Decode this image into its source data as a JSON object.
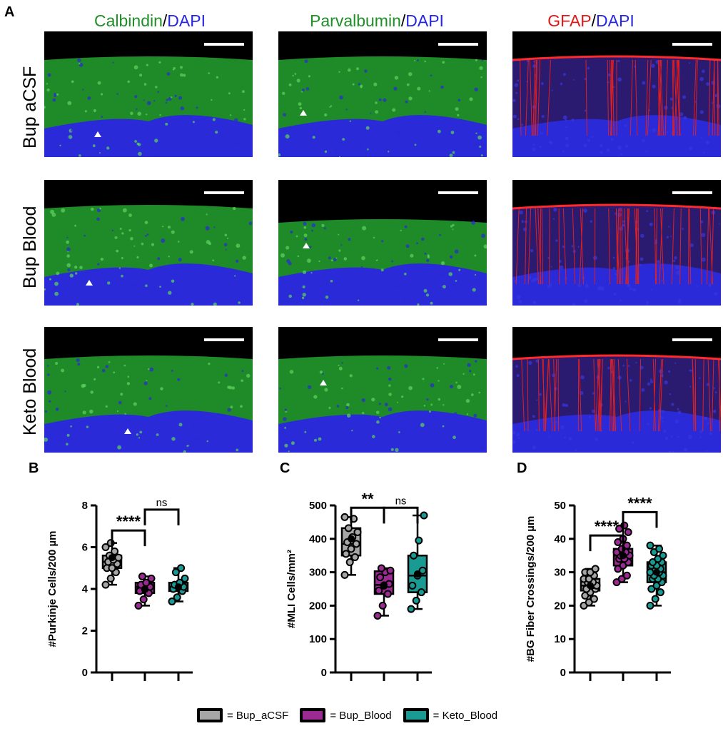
{
  "panel_letters": [
    "A",
    "B",
    "C",
    "D"
  ],
  "column_titles": [
    {
      "marker": "Calbindin",
      "sep": "/",
      "dapi": "DAPI",
      "color": "#1e8f26"
    },
    {
      "marker": "Parvalbumin",
      "sep": "/",
      "dapi": "DAPI",
      "color": "#1e8f26"
    },
    {
      "marker": "GFAP",
      "sep": "/",
      "dapi": "DAPI",
      "color": "#e01818"
    }
  ],
  "dapi_color": "#2626e0",
  "row_labels": [
    "Bup aCSF",
    "Bup Blood",
    "Keto Blood"
  ],
  "legend": [
    {
      "label": "= Bup_aCSF",
      "color": "#a6a6a6"
    },
    {
      "label": "= Bup_Blood",
      "color": "#9b2b93"
    },
    {
      "label": "= Keto_Blood",
      "color": "#199a92"
    }
  ],
  "chart_data": [
    {
      "type": "box",
      "panel": "B",
      "ylabel": "#Purkinje Cells/200 µm",
      "ylim": [
        0,
        8
      ],
      "yticks": [
        0,
        2,
        4,
        6,
        8
      ],
      "groups": [
        {
          "name": "Bup_aCSF",
          "min": 4.2,
          "q1": 5.0,
          "median": 5.3,
          "q3": 5.6,
          "max": 6.2,
          "mean": 5.5,
          "points": [
            4.2,
            4.5,
            4.8,
            5.0,
            5.0,
            5.2,
            5.3,
            5.4,
            5.5,
            5.6,
            5.8,
            6.0,
            6.2
          ]
        },
        {
          "name": "Bup_Blood",
          "min": 3.2,
          "q1": 3.8,
          "median": 4.1,
          "q3": 4.3,
          "max": 4.6,
          "mean": 4.0,
          "points": [
            3.2,
            3.5,
            3.8,
            3.9,
            4.0,
            4.1,
            4.2,
            4.3,
            4.5,
            4.6
          ]
        },
        {
          "name": "Keto_Blood",
          "min": 3.4,
          "q1": 3.9,
          "median": 4.1,
          "q3": 4.3,
          "max": 5.0,
          "mean": 4.1,
          "points": [
            3.4,
            3.6,
            3.9,
            4.0,
            4.1,
            4.1,
            4.2,
            4.3,
            4.5,
            4.8,
            5.0
          ]
        }
      ],
      "brackets": [
        {
          "from": 0,
          "to": 1,
          "label": "****",
          "y": 6.8,
          "bold": true
        },
        {
          "from": 1,
          "to": 2,
          "label": "ns",
          "y": 7.8,
          "bold": false
        }
      ]
    },
    {
      "type": "box",
      "panel": "C",
      "ylabel": "#MLI Cells/mm²",
      "ylim": [
        0,
        500
      ],
      "yticks": [
        0,
        100,
        200,
        300,
        400,
        500
      ],
      "groups": [
        {
          "name": "Bup_aCSF",
          "min": 292,
          "q1": 350,
          "median": 385,
          "q3": 432,
          "max": 465,
          "mean": 400,
          "points": [
            292,
            330,
            345,
            355,
            370,
            385,
            390,
            405,
            420,
            432,
            460,
            465
          ]
        },
        {
          "name": "Bup_Blood",
          "min": 170,
          "q1": 235,
          "median": 262,
          "q3": 303,
          "max": 312,
          "mean": 262,
          "points": [
            170,
            200,
            235,
            245,
            260,
            265,
            285,
            300,
            305,
            312
          ]
        },
        {
          "name": "Keto_Blood",
          "min": 190,
          "q1": 240,
          "median": 290,
          "q3": 350,
          "max": 470,
          "mean": 295,
          "points": [
            190,
            215,
            240,
            260,
            290,
            305,
            350,
            395,
            470
          ]
        }
      ],
      "brackets": [
        {
          "from": 0,
          "to": 1,
          "label": "**",
          "y": 493,
          "bold": true
        },
        {
          "from": 1,
          "to": 2,
          "label": "ns",
          "y": 493,
          "bold": false
        }
      ]
    },
    {
      "type": "box",
      "panel": "D",
      "ylabel": "#BG Fiber Crossings/200 µm",
      "ylim": [
        0,
        50
      ],
      "yticks": [
        0,
        10,
        20,
        30,
        40,
        50
      ],
      "groups": [
        {
          "name": "Bup_aCSF",
          "min": 20,
          "q1": 24.5,
          "median": 26,
          "q3": 28,
          "max": 31,
          "mean": 26,
          "points": [
            20,
            21,
            22,
            23,
            24,
            25,
            25,
            26,
            26,
            27,
            27,
            28,
            28,
            29,
            30,
            30,
            31
          ]
        },
        {
          "name": "Bup_Blood",
          "min": 27,
          "q1": 32,
          "median": 35,
          "q3": 37,
          "max": 44,
          "mean": 35,
          "points": [
            27,
            28,
            29,
            31,
            32,
            33,
            34,
            34,
            35,
            35,
            36,
            36,
            37,
            38,
            39,
            40,
            42,
            43,
            44
          ]
        },
        {
          "name": "Keto_Blood",
          "min": 20,
          "q1": 27,
          "median": 30,
          "q3": 33,
          "max": 38,
          "mean": 30,
          "points": [
            20,
            22,
            24,
            25,
            26,
            27,
            28,
            28,
            29,
            29,
            30,
            30,
            31,
            31,
            32,
            32,
            33,
            33,
            34,
            35,
            36,
            37,
            38
          ]
        }
      ],
      "brackets": [
        {
          "from": 0,
          "to": 1,
          "label": "****",
          "y": 41,
          "bold": true
        },
        {
          "from": 1,
          "to": 2,
          "label": "****",
          "y": 48,
          "bold": true
        }
      ]
    }
  ]
}
